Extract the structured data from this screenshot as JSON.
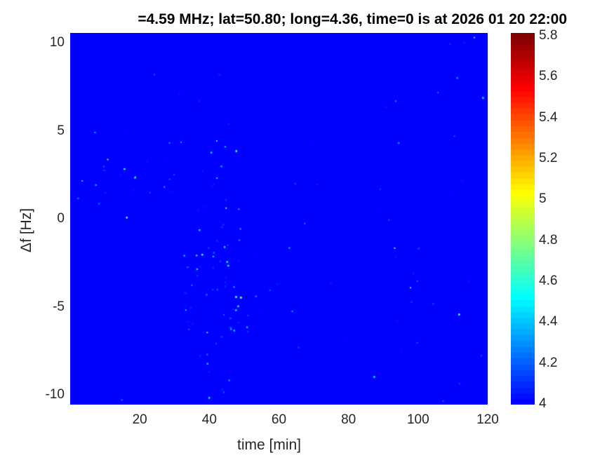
{
  "chart_data": {
    "type": "heatmap",
    "title": "=4.59 MHz;  lat=50.80; long=4.36, time=0 is at 2026 01 20 22:00",
    "xlabel": "time [min]",
    "ylabel": "Δf [Hz]",
    "xlim": [
      0,
      120
    ],
    "ylim": [
      -10.5,
      10.6
    ],
    "xticks": [
      20,
      40,
      60,
      80,
      100,
      120
    ],
    "xtick_labels": [
      "20",
      "40",
      "60",
      "80",
      "100",
      "120"
    ],
    "yticks": [
      10,
      5,
      0,
      -5,
      -10
    ],
    "ytick_labels": [
      "10",
      "5",
      "0",
      "-5",
      "-10"
    ],
    "colormap": "jet",
    "clim": [
      4,
      5.8
    ],
    "colorbar_ticks": [
      4,
      4.2,
      4.4,
      4.6,
      4.8,
      5,
      5.2,
      5.4,
      5.6,
      5.8
    ],
    "colorbar_tick_labels": [
      "4",
      "4.2",
      "4.4",
      "4.6",
      "4.8",
      "5",
      "5.2",
      "5.4",
      "5.6",
      "5.8"
    ],
    "background_value": 4,
    "grid": false
  }
}
